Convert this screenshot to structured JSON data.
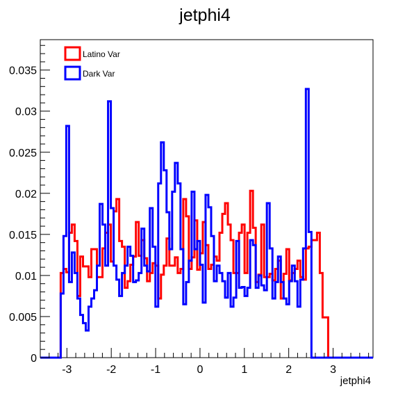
{
  "chart_data": {
    "type": "histogram",
    "title": "jetphi4",
    "xlabel": "jetphi4",
    "ylabel": "",
    "xlim": [
      -3.6,
      3.9
    ],
    "ylim": [
      0,
      0.0387
    ],
    "xticks": [
      -3,
      -2,
      -1,
      0,
      1,
      2,
      3
    ],
    "xtick_labels": [
      "-3",
      "-2",
      "-1",
      "0",
      "1",
      "2",
      "3"
    ],
    "yticks": [
      0,
      0.005,
      0.01,
      0.015,
      0.02,
      0.025,
      0.03,
      0.035
    ],
    "ytick_labels": [
      "0",
      "0.005",
      "0.01",
      "0.015",
      "0.02",
      "0.025",
      "0.03",
      "0.035"
    ],
    "grid": false,
    "legend_position": "top-left",
    "bin_start": -3.14,
    "bin_width": 0.0628,
    "series": [
      {
        "name": "Latino Var",
        "color": "#ff0000",
        "values": [
          0.0103,
          0.0108,
          0.0104,
          0.0152,
          0.0162,
          0.0142,
          0.0075,
          0.0123,
          0.0111,
          0.0111,
          0.0098,
          0.0132,
          0.0132,
          0.0098,
          0.0098,
          0.0133,
          0.0152,
          0.0162,
          0.0117,
          0.0178,
          0.0193,
          0.0142,
          0.0135,
          0.0085,
          0.0093,
          0.0113,
          0.0123,
          0.0165,
          0.0124,
          0.0143,
          0.0121,
          0.0093,
          0.0103,
          0.0115,
          0.0112,
          0.0072,
          0.0101,
          0.0112,
          0.0145,
          0.0112,
          0.0112,
          0.0122,
          0.0103,
          0.0108,
          0.0193,
          0.0172,
          0.0108,
          0.0122,
          0.0167,
          0.0107,
          0.0127,
          0.0165,
          0.0137,
          0.0108,
          0.0113,
          0.0123,
          0.0118,
          0.0152,
          0.0175,
          0.0188,
          0.0162,
          0.0143,
          0.0103,
          0.0103,
          0.0152,
          0.0162,
          0.0103,
          0.0152,
          0.0203,
          0.0158,
          0.0092,
          0.0101,
          0.0162,
          0.0098,
          0.0098,
          0.0102,
          0.0094,
          0.0108,
          0.0118,
          0.0072,
          0.0102,
          0.0132,
          0.0094,
          0.0103,
          0.0108,
          0.0118,
          0.0098,
          0.0095,
          0.0133,
          0.0135,
          0.0143,
          0.0143,
          0.0152,
          0.0103,
          0.0049,
          0.0049
        ]
      },
      {
        "name": "Dark Var",
        "color": "#0000ff",
        "values": [
          0.0078,
          0.0148,
          0.0282,
          0.0092,
          0.0128,
          0.0103,
          0.0072,
          0.0052,
          0.0042,
          0.0033,
          0.0062,
          0.0072,
          0.0082,
          0.0112,
          0.0187,
          0.0162,
          0.0112,
          0.0312,
          0.0182,
          0.0112,
          0.0095,
          0.0075,
          0.0103,
          0.0112,
          0.0135,
          0.0124,
          0.0092,
          0.0094,
          0.0103,
          0.0157,
          0.0112,
          0.0105,
          0.0182,
          0.0135,
          0.0062,
          0.0212,
          0.0262,
          0.0228,
          0.0177,
          0.0132,
          0.0202,
          0.0237,
          0.0212,
          0.0132,
          0.0065,
          0.0092,
          0.0118,
          0.0202,
          0.0132,
          0.0142,
          0.0113,
          0.0067,
          0.0198,
          0.0183,
          0.0148,
          0.0093,
          0.0112,
          0.0103,
          0.0093,
          0.0073,
          0.0103,
          0.0062,
          0.0073,
          0.0142,
          0.0085,
          0.0086,
          0.0075,
          0.0085,
          0.0143,
          0.0137,
          0.0085,
          0.01,
          0.0088,
          0.0082,
          0.0188,
          0.0133,
          0.0072,
          0.0092,
          0.0123,
          0.0092,
          0.0072,
          0.0065,
          0.0093,
          0.0112,
          0.0093,
          0.0062,
          0.0095,
          0.0133,
          0.0327,
          0.0153,
          0.0
        ]
      }
    ]
  }
}
